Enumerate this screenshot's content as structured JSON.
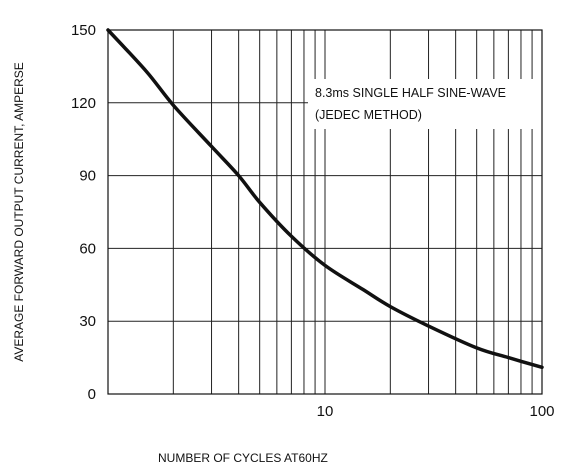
{
  "chart_data": {
    "type": "line",
    "title": "",
    "xlabel": "NUMBER OF CYCLES AT60HZ",
    "ylabel": "AVERAGE FORWARD OUTPUT CURRENT, AMPERSE",
    "x_scale": "log",
    "xlim": [
      1,
      100
    ],
    "ylim": [
      0,
      150
    ],
    "x_ticks": [
      10,
      100
    ],
    "x_tick_labels": [
      "10",
      "100"
    ],
    "y_ticks": [
      0,
      30,
      60,
      90,
      120,
      150
    ],
    "y_tick_labels": [
      "0",
      "30",
      "60",
      "90",
      "120",
      "150"
    ],
    "grid": true,
    "legend": "none",
    "annotations": [
      "8.3ms SINGLE HALF SINE-WAVE",
      "(JEDEC METHOD)"
    ],
    "series": [
      {
        "name": "",
        "color": "#111111",
        "x": [
          1,
          1.5,
          2,
          3,
          4,
          5,
          7,
          10,
          15,
          20,
          30,
          50,
          70,
          100
        ],
        "y": [
          150,
          133,
          119,
          102,
          90,
          79,
          65,
          53,
          43,
          36,
          28,
          19,
          15,
          11
        ]
      }
    ]
  }
}
